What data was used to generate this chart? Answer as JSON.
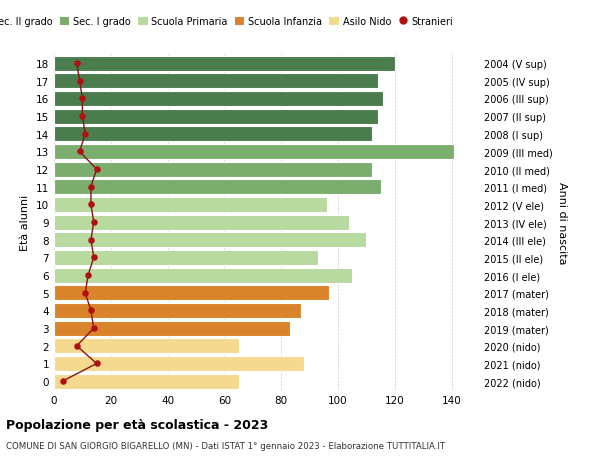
{
  "ages": [
    18,
    17,
    16,
    15,
    14,
    13,
    12,
    11,
    10,
    9,
    8,
    7,
    6,
    5,
    4,
    3,
    2,
    1,
    0
  ],
  "years": [
    "2004 (V sup)",
    "2005 (IV sup)",
    "2006 (III sup)",
    "2007 (II sup)",
    "2008 (I sup)",
    "2009 (III med)",
    "2010 (II med)",
    "2011 (I med)",
    "2012 (V ele)",
    "2013 (IV ele)",
    "2014 (III ele)",
    "2015 (II ele)",
    "2016 (I ele)",
    "2017 (mater)",
    "2018 (mater)",
    "2019 (mater)",
    "2020 (nido)",
    "2021 (nido)",
    "2022 (nido)"
  ],
  "bar_values": [
    120,
    114,
    116,
    114,
    112,
    141,
    112,
    115,
    96,
    104,
    110,
    93,
    105,
    97,
    87,
    83,
    65,
    88,
    65
  ],
  "bar_colors": [
    "#4a7c4e",
    "#4a7c4e",
    "#4a7c4e",
    "#4a7c4e",
    "#4a7c4e",
    "#7aad6e",
    "#7aad6e",
    "#7aad6e",
    "#b8d9a0",
    "#b8d9a0",
    "#b8d9a0",
    "#b8d9a0",
    "#b8d9a0",
    "#d9832a",
    "#d9832a",
    "#d9832a",
    "#f5d98e",
    "#f5d98e",
    "#f5d98e"
  ],
  "stranieri": [
    8,
    9,
    10,
    10,
    11,
    9,
    15,
    13,
    13,
    14,
    13,
    14,
    12,
    11,
    13,
    14,
    8,
    15,
    3
  ],
  "legend_labels": [
    "Sec. II grado",
    "Sec. I grado",
    "Scuola Primaria",
    "Scuola Infanzia",
    "Asilo Nido",
    "Stranieri"
  ],
  "legend_colors": [
    "#4a7c4e",
    "#7aad6e",
    "#b8d9a0",
    "#d9832a",
    "#f5d98e",
    "#b01010"
  ],
  "ylabel": "Età alunni",
  "right_ylabel": "Anni di nascita",
  "title": "Popolazione per età scolastica - 2023",
  "subtitle": "COMUNE DI SAN GIORGIO BIGARELLO (MN) - Dati ISTAT 1° gennaio 2023 - Elaborazione TUTTITALIA.IT",
  "xlim": [
    0,
    150
  ],
  "xticks": [
    0,
    20,
    40,
    60,
    80,
    100,
    120,
    140
  ],
  "background_color": "#ffffff",
  "grid_color": "#cccccc"
}
